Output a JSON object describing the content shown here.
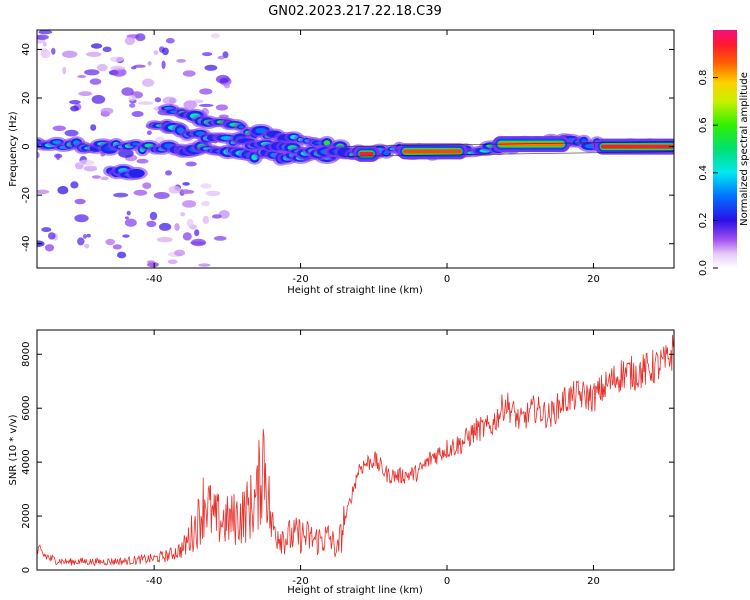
{
  "figure_title": "GN02.2023.217.22.18.C39",
  "chart_data": [
    {
      "type": "heatmap",
      "title": "GN02.2023.217.22.18.C39",
      "xlabel": "Height of straight line (km)",
      "ylabel": "Frequency (Hz)",
      "xlim": [
        -56,
        31
      ],
      "ylim": [
        -50,
        48
      ],
      "xticks": [
        -40,
        -20,
        0,
        20
      ],
      "yticks": [
        -40,
        -20,
        0,
        20,
        40
      ],
      "colorbar": {
        "label": "Normalized spectral amplitude",
        "range": [
          0,
          1
        ],
        "ticks": [
          "0.0",
          "0.2",
          "0.4",
          "0.6",
          "0.8"
        ],
        "colormap": "gist_ncar-like (white-violet-blue-cyan-green-yellow-orange-red-magenta)"
      },
      "ridges": [
        {
          "x": [
            -56,
            -48,
            -40,
            -34,
            -28,
            -22,
            -16,
            -12,
            -8,
            -2,
            4,
            8,
            12,
            20,
            31
          ],
          "y": [
            1,
            0,
            0,
            -1,
            -3,
            -4,
            -3,
            -3,
            -2,
            -2,
            -2,
            0,
            2,
            1,
            0
          ],
          "amplitude": 0.5
        },
        {
          "x": [
            -38,
            -32,
            -26,
            -20,
            -14
          ],
          "y": [
            15,
            10,
            6,
            3,
            -1
          ],
          "amplitude": 0.55
        },
        {
          "x": [
            -40,
            -34,
            -28,
            -22,
            -16,
            -12
          ],
          "y": [
            8,
            5,
            2,
            -1,
            -3,
            -3
          ],
          "amplitude": 0.5
        },
        {
          "x": [
            -46,
            -42
          ],
          "y": [
            -10,
            -11
          ],
          "amplitude": 0.4
        }
      ],
      "scatter_region": {
        "x": [
          -56,
          -30
        ],
        "y": [
          -50,
          48
        ],
        "amplitude": 0.15
      },
      "strong_bands": [
        {
          "x": [
            -12,
            -10
          ],
          "y": -3,
          "amplitude": 1.0
        },
        {
          "x": [
            -6,
            2
          ],
          "y": -2,
          "amplitude": 0.95
        },
        {
          "x": [
            7,
            16
          ],
          "y": 1,
          "amplitude": 0.9
        },
        {
          "x": [
            21,
            31
          ],
          "y": 0,
          "amplitude": 1.0
        }
      ]
    },
    {
      "type": "line",
      "xlabel": "Height of straight line (km)",
      "ylabel": "SNR (10 * v/v)",
      "xlim": [
        -56,
        31
      ],
      "ylim": [
        0,
        8900
      ],
      "xticks": [
        -40,
        -20,
        0,
        20
      ],
      "yticks": [
        0,
        2000,
        4000,
        6000,
        8000
      ],
      "color": "#e8302a",
      "series": [
        {
          "x": [
            -56,
            -54,
            -52,
            -50,
            -48,
            -46,
            -44,
            -42,
            -40,
            -38,
            -36,
            -34,
            -33,
            -32,
            -30,
            -28,
            -26,
            -25,
            -24,
            -22,
            -20,
            -18,
            -16,
            -15,
            -14,
            -12,
            -10,
            -8,
            -6,
            -4,
            -2,
            0,
            2,
            4,
            6,
            8,
            10,
            12,
            14,
            16,
            18,
            20,
            22,
            24,
            26,
            28,
            30,
            31
          ],
          "values": [
            700,
            400,
            300,
            320,
            300,
            320,
            330,
            380,
            420,
            550,
            800,
            1800,
            2700,
            1900,
            1800,
            2000,
            2600,
            4400,
            1600,
            1200,
            1300,
            1100,
            1200,
            700,
            1800,
            3800,
            4100,
            3500,
            3500,
            3600,
            4200,
            4500,
            4700,
            5200,
            5300,
            6200,
            5500,
            6000,
            5700,
            6300,
            6500,
            6400,
            6900,
            7300,
            7300,
            7500,
            7700,
            8200
          ]
        }
      ]
    }
  ]
}
